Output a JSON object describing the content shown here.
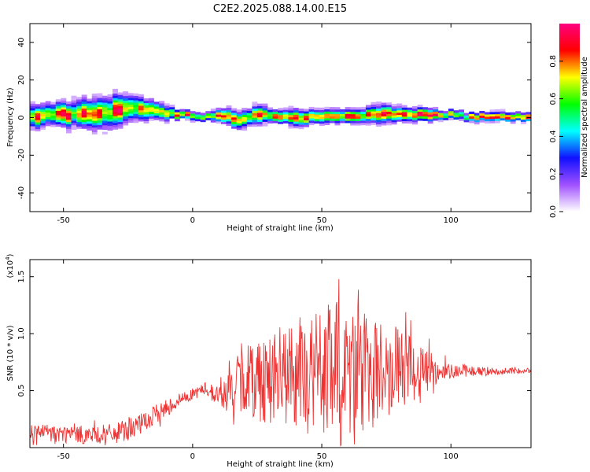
{
  "title": "C2E2.2025.088.14.00.E15",
  "chart_data": [
    {
      "type": "heatmap",
      "xlabel": "Height of straight line (km)",
      "ylabel": "Frequency (Hz)",
      "xlim": [
        -63,
        131
      ],
      "ylim": [
        -50,
        50
      ],
      "xticks": [
        -50,
        0,
        50,
        100
      ],
      "yticks": [
        -40,
        -20,
        0,
        20,
        40
      ],
      "colorbar": {
        "label": "Normalized spectral amplitude",
        "range": [
          0,
          1
        ],
        "ticks": [
          "0.0",
          "0.2",
          "0.4",
          "0.6",
          "0.8"
        ],
        "colors": [
          "#ffffff",
          "#a050ff",
          "#1010ff",
          "#00ffff",
          "#00ff00",
          "#ffff00",
          "#ff0000",
          "#ff0080"
        ]
      },
      "ridge": {
        "x": [
          -63,
          -55,
          -45,
          -35,
          -30,
          -25,
          -20,
          -15,
          -10,
          -5,
          0,
          5,
          10,
          15,
          17,
          20,
          25,
          30,
          35,
          40,
          45,
          50,
          55,
          60,
          65,
          70,
          75,
          80,
          85,
          90,
          95,
          100,
          105,
          110,
          115,
          120,
          125,
          131
        ],
        "y": [
          0,
          1,
          1,
          2,
          3,
          4,
          4,
          3,
          2,
          1,
          0,
          0,
          1,
          -1,
          -2,
          0,
          1,
          1,
          0,
          -1,
          0,
          0,
          0,
          0,
          0,
          1,
          2,
          1,
          1,
          1,
          1,
          1,
          0,
          0,
          0,
          0,
          0,
          0
        ],
        "spread_hz": [
          5,
          5,
          6,
          7,
          7,
          6,
          5,
          4,
          3,
          2,
          2,
          2,
          3,
          4,
          4,
          4,
          4,
          3,
          3,
          4,
          3,
          3,
          3,
          3,
          3,
          4,
          4,
          3,
          3,
          3,
          2,
          2,
          2,
          2,
          2,
          2,
          2,
          2
        ]
      },
      "grid": false
    },
    {
      "type": "line",
      "xlabel": "Height of straight line (km)",
      "ylabel": "SNR (10 * v/v)",
      "y_exponent_label": "(x10",
      "y_exponent": "4",
      "xlim": [
        -63,
        131
      ],
      "ylim": [
        0,
        1.65
      ],
      "xticks": [
        -50,
        0,
        50,
        100
      ],
      "yticks": [
        0.5,
        1.0,
        1.5
      ],
      "ytick_labels": [
        "0.5",
        "1.0",
        "1.5"
      ],
      "grid": false,
      "series": [
        {
          "color": "#ee3333",
          "envelope": {
            "x": [
              -63,
              -50,
              -40,
              -30,
              -20,
              -10,
              -5,
              0,
              5,
              10,
              15,
              20,
              25,
              30,
              40,
              45,
              50,
              55,
              60,
              65,
              70,
              75,
              80,
              85,
              90,
              95,
              100,
              110,
              120,
              131
            ],
            "mean": [
              0.13,
              0.12,
              0.11,
              0.12,
              0.2,
              0.35,
              0.42,
              0.47,
              0.52,
              0.45,
              0.5,
              0.6,
              0.62,
              0.62,
              0.64,
              0.65,
              0.66,
              0.67,
              0.66,
              0.67,
              0.68,
              0.7,
              0.7,
              0.69,
              0.68,
              0.67,
              0.68,
              0.67,
              0.67,
              0.68
            ],
            "amp": [
              0.09,
              0.08,
              0.08,
              0.09,
              0.1,
              0.08,
              0.06,
              0.05,
              0.06,
              0.1,
              0.2,
              0.32,
              0.4,
              0.42,
              0.48,
              0.55,
              0.58,
              0.62,
              0.58,
              0.55,
              0.5,
              0.4,
              0.35,
              0.3,
              0.2,
              0.12,
              0.07,
              0.04,
              0.03,
              0.02
            ]
          }
        }
      ]
    }
  ]
}
